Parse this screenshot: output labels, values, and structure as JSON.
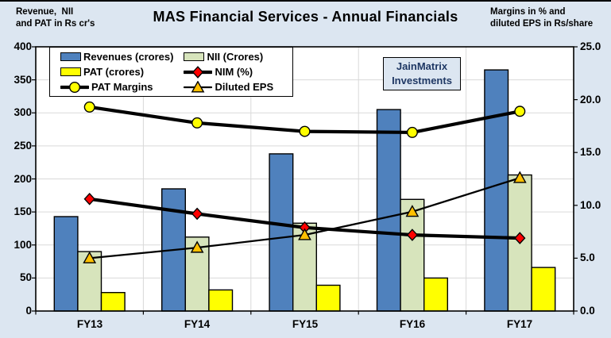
{
  "header": {
    "left_label_line1": "Revenue,  NII",
    "left_label_line2": "and PAT in Rs cr's",
    "title": "MAS Financial Services - Annual Financials",
    "right_label_line1": "Margins in % and",
    "right_label_line2": "diluted EPS in Rs/share"
  },
  "watermark": {
    "line1": "JainMatrix",
    "line2": "Investments"
  },
  "chart_data": {
    "type": "bar",
    "subtype": "combo-bar-line-dual-axis",
    "title": "MAS Financial Services - Annual Financials",
    "categories": [
      "FY13",
      "FY14",
      "FY15",
      "FY16",
      "FY17"
    ],
    "bar_series": [
      {
        "name": "Revenues (crores)",
        "axis": "left",
        "color": "#4f81bd",
        "values": [
          143,
          185,
          238,
          305,
          365
        ]
      },
      {
        "name": "NII (Crores)",
        "axis": "left",
        "color": "#d7e4bc",
        "values": [
          90,
          112,
          133,
          169,
          206
        ]
      },
      {
        "name": "PAT  (crores)",
        "axis": "left",
        "color": "#ffff00",
        "values": [
          28,
          32,
          39,
          50,
          66
        ]
      }
    ],
    "line_series": [
      {
        "name": "NIM (%)",
        "axis": "right",
        "marker": "diamond",
        "marker_color": "#ff0000",
        "line_color": "#000000",
        "line_width": 4.2,
        "values": [
          10.6,
          9.2,
          7.9,
          7.2,
          6.9
        ]
      },
      {
        "name": "PAT Margins",
        "axis": "right",
        "marker": "circle",
        "marker_color": "#ffff00",
        "line_color": "#000000",
        "line_width": 4.2,
        "values": [
          19.3,
          17.8,
          17.0,
          16.9,
          18.9
        ]
      },
      {
        "name": "Diluted EPS",
        "axis": "right",
        "marker": "triangle",
        "marker_color": "#ffc000",
        "line_color": "#000000",
        "line_width": 2.3,
        "values": [
          5.0,
          6.0,
          7.2,
          9.4,
          12.6
        ]
      }
    ],
    "left_axis": {
      "label": "Revenue, NII and PAT in Rs cr's",
      "min": 0,
      "max": 400,
      "step": 50,
      "tick_labels": [
        "400",
        "350",
        "300",
        "250",
        "200",
        "150",
        "100",
        "50",
        "0"
      ]
    },
    "right_axis": {
      "label": "Margins in % and diluted EPS in Rs/share",
      "min": 0,
      "max": 25,
      "step": 5,
      "tick_labels": [
        "25.0",
        "20.0",
        "15.0",
        "10.0",
        "5.0",
        "0.0"
      ]
    },
    "grid": true,
    "legend_position": "top-left",
    "colors": {
      "background": "#dce6f1",
      "plot_background": "#ffffff",
      "gridline": "#d9d9d9",
      "axis_line": "#000000"
    }
  }
}
